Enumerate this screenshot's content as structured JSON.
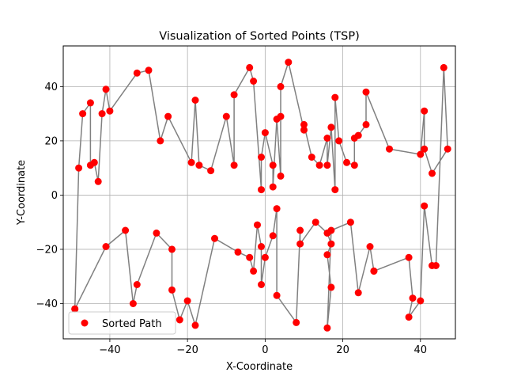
{
  "chart_data": {
    "type": "scatter",
    "title": "Visualization of Sorted Points (TSP)",
    "xlabel": "X-Coordinate",
    "ylabel": "Y-Coordinate",
    "xlim": [
      -52,
      49
    ],
    "ylim": [
      -53,
      55
    ],
    "xticks": [
      -40,
      -20,
      0,
      20,
      40
    ],
    "yticks": [
      -40,
      -20,
      0,
      20,
      40
    ],
    "grid": true,
    "legend": {
      "position": "lower-left",
      "label": "Sorted Path"
    },
    "colors": {
      "line": "#808080",
      "marker": "#ff0000",
      "grid": "#b0b0b0"
    },
    "series": [
      {
        "name": "Sorted Path",
        "x": [
          -49,
          -48,
          -47,
          -45,
          -45,
          -44,
          -43,
          -42,
          -41,
          -40,
          -33,
          -30,
          -27,
          -25,
          -19,
          -18,
          -17,
          -14,
          -10,
          -8,
          -8,
          -4,
          -3,
          -1,
          -1,
          0,
          2,
          2,
          3,
          4,
          4,
          4,
          6,
          10,
          10,
          12,
          14,
          16,
          16,
          17,
          18,
          18,
          19,
          21,
          23,
          23,
          24,
          26,
          26,
          32,
          40,
          41,
          41,
          43,
          47,
          46,
          44,
          43,
          41,
          40,
          37,
          38,
          37,
          28,
          28,
          27,
          24,
          22,
          17,
          16,
          17,
          16,
          17,
          16,
          13,
          9,
          9,
          8,
          3,
          3,
          2,
          0,
          -1,
          -1,
          -2,
          -3,
          -4,
          -7,
          -13,
          -18,
          -20,
          -22,
          -24,
          -24,
          -28,
          -33,
          -34,
          -36,
          -41,
          -49
        ],
        "y": [
          -42,
          10,
          30,
          34,
          11,
          12,
          5,
          30,
          39,
          31,
          45,
          46,
          20,
          29,
          12,
          35,
          11,
          9,
          29,
          11,
          37,
          47,
          42,
          2,
          14,
          23,
          11,
          3,
          28,
          7,
          29,
          40,
          49,
          24,
          26,
          14,
          11,
          21,
          11,
          25,
          2,
          36,
          20,
          12,
          11,
          21,
          22,
          26,
          38,
          17,
          15,
          31,
          17,
          8,
          17,
          47,
          -26,
          -26,
          -4,
          -39,
          -45,
          -38,
          -23,
          -28,
          -28,
          -19,
          -36,
          -10,
          -13,
          -49,
          -34,
          -22,
          -18,
          -14,
          -10,
          -18,
          -13,
          -47,
          -37,
          -5,
          -15,
          -23,
          -33,
          -19,
          -11,
          -28,
          -23,
          -21,
          -16,
          -48,
          -39,
          -46,
          -35,
          -20,
          -14,
          -33,
          -40,
          -13,
          -19,
          -42
        ]
      }
    ]
  }
}
